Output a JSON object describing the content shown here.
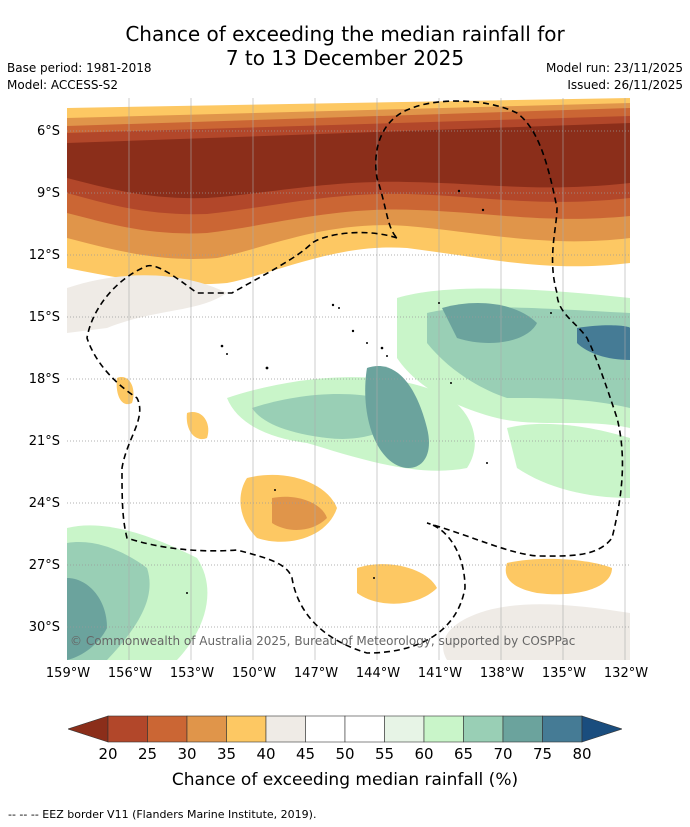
{
  "title": {
    "line1": "Chance of exceeding the median rainfall for",
    "line2": "7 to 13 December 2025"
  },
  "meta": {
    "base_period": "Base period: 1981-2018",
    "model": "Model: ACCESS-S2",
    "model_run": "Model run: 23/11/2025",
    "issued": "Issued: 26/11/2025"
  },
  "map": {
    "lat_labels": [
      "6°S",
      "9°S",
      "12°S",
      "15°S",
      "18°S",
      "21°S",
      "24°S",
      "27°S",
      "30°S"
    ],
    "lon_labels": [
      "159°W",
      "156°W",
      "153°W",
      "150°W",
      "147°W",
      "144°W",
      "141°W",
      "138°W",
      "135°W",
      "132°W"
    ],
    "copyright": "© Commonwealth of Australia 2025, Bureau of Meteorology, supported by COSPPac"
  },
  "colorbar": {
    "ticks": [
      "20",
      "25",
      "30",
      "35",
      "40",
      "45",
      "50",
      "55",
      "60",
      "65",
      "70",
      "75",
      "80"
    ],
    "colors": [
      "#8b2e1a",
      "#b2472a",
      "#cb6634",
      "#e0954a",
      "#fdc863",
      "#efebe6",
      "#ffffff",
      "#ffffff",
      "#e7f4e6",
      "#c9f5c9",
      "#99cfb5",
      "#6ba39d",
      "#457b95",
      "#1a4d7e"
    ],
    "label": "Chance of exceeding median rainfall (%)"
  },
  "footnote": "--  --  -- EEZ border V11 (Flanders Marine Institute, 2019)."
}
